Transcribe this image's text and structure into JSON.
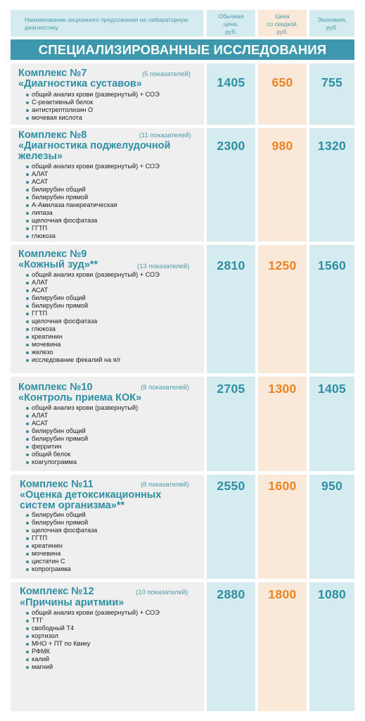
{
  "header": {
    "name_col": "Наименование акционного предложения на лабораторную диагностику",
    "regular_col": [
      "Обычная",
      "цена,",
      "руб."
    ],
    "discount_col": [
      "Цена",
      "со скидкой,",
      "руб."
    ],
    "savings_col": [
      "Экономия,",
      "руб."
    ]
  },
  "section_title": "СПЕЦИАЛИЗИРОВАННЫЕ ИССЛЕДОВАНИЯ",
  "packages": [
    {
      "number": "Комплекс №7",
      "title_lines": [
        "«Диагностика суставов»"
      ],
      "count": "(5 показателей)",
      "regular": "1405",
      "discount": "650",
      "savings": "755",
      "items": [
        "общий анализ крови (развернутый) + СОЭ",
        "С-реактивный белок",
        "антистрептолизин О",
        "мочевая кислота"
      ]
    },
    {
      "number": "Комплекс №8",
      "title_lines": [
        "«Диагностика поджелудочной",
        "железы»"
      ],
      "count": "(11 показателей)",
      "regular": "2300",
      "discount": "980",
      "savings": "1320",
      "items": [
        "общий анализ крови (развернутый) + СОЭ",
        "АЛАТ",
        "АСАТ",
        "билирубин общий",
        "билирубин прямой",
        "А-Амилаза панкреатическая",
        "липаза",
        "щелочная фосфатаза",
        "ГГТП",
        "глюкоза"
      ]
    },
    {
      "number": "Комплекс №9",
      "title_lines": [
        "«Кожный зуд»**"
      ],
      "count": "(13 показателей)",
      "regular": "2810",
      "discount": "1250",
      "savings": "1560",
      "items": [
        "общий анализ крови (развернутый) + СОЭ",
        "АЛАТ",
        "АСАТ",
        "билирубин общий",
        "билирубин прямой",
        "ГГТП",
        "щелочная фосфатаза",
        "глюкоза",
        "креатинин",
        "мочевина",
        "железо",
        "исследование фекалий на я/г"
      ]
    },
    {
      "number": "Комплекс №10",
      "title_lines": [
        "«Контроль приема КОК»"
      ],
      "count": "(8 показателей)",
      "regular": "2705",
      "discount": "1300",
      "savings": "1405",
      "items": [
        "общий анализ крови (развернутый)",
        "АЛАТ",
        "АСАТ",
        "билирубин общий",
        "билирубин прямой",
        "ферритин",
        "общий белок",
        "коагулограмма"
      ]
    },
    {
      "number": "Комплекс №11",
      "title_lines": [
        "«Оценка детоксикационных",
        "систем организма»**"
      ],
      "count": "(8 показателей)",
      "regular": "2550",
      "discount": "1600",
      "savings": "950",
      "items": [
        "билирубин общий",
        "билирубин прямой",
        "щелочная фосфатаза",
        "ГГТП",
        "креатинин",
        "мочевина",
        "цистатин С",
        "копрограмма"
      ]
    },
    {
      "number": "Комплекс №12",
      "title_lines": [
        "«Причины аритмии»"
      ],
      "count": "(10 показателей)",
      "regular": "2880",
      "discount": "1800",
      "savings": "1080",
      "items": [
        "общий анализ крови (развернутый) + СОЭ",
        "ТТГ",
        "свободный Т4",
        "кортизол",
        "МНО + ПТ по Квику",
        "РФМК",
        "калий",
        "магний"
      ]
    }
  ]
}
